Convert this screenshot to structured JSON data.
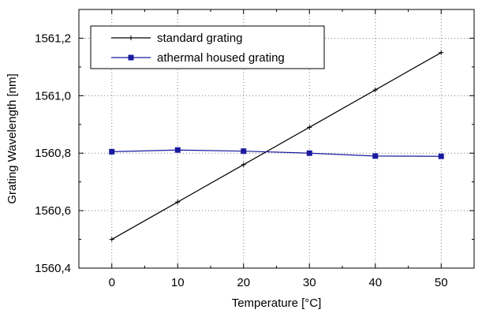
{
  "chart_data": {
    "type": "line",
    "xlabel": "Temperature [°C]",
    "ylabel": "Grating Wavelength [nm]",
    "xlim": [
      -5,
      55
    ],
    "ylim": [
      1560.4,
      1561.3
    ],
    "x_ticks": [
      0,
      10,
      20,
      30,
      40,
      50
    ],
    "x_tick_labels": [
      "0",
      "10",
      "20",
      "30",
      "40",
      "50"
    ],
    "y_ticks": [
      1560.4,
      1560.6,
      1560.8,
      1561.0,
      1561.2
    ],
    "y_tick_labels": [
      "1560,4",
      "1560,6",
      "1560,8",
      "1561,0",
      "1561,2"
    ],
    "grid": true,
    "legend_position": "top-left",
    "series": [
      {
        "name": "standard grating",
        "marker": "plus",
        "color": "#000000",
        "x": [
          0,
          10,
          20,
          30,
          40,
          50
        ],
        "y": [
          1560.5,
          1560.63,
          1560.76,
          1560.89,
          1561.02,
          1561.15
        ]
      },
      {
        "name": "athermal housed grating",
        "marker": "square",
        "color": "#1a1aa0",
        "x": [
          0,
          10,
          20,
          30,
          40,
          50
        ],
        "y": [
          1560.805,
          1560.811,
          1560.807,
          1560.8,
          1560.79,
          1560.789
        ]
      }
    ]
  }
}
